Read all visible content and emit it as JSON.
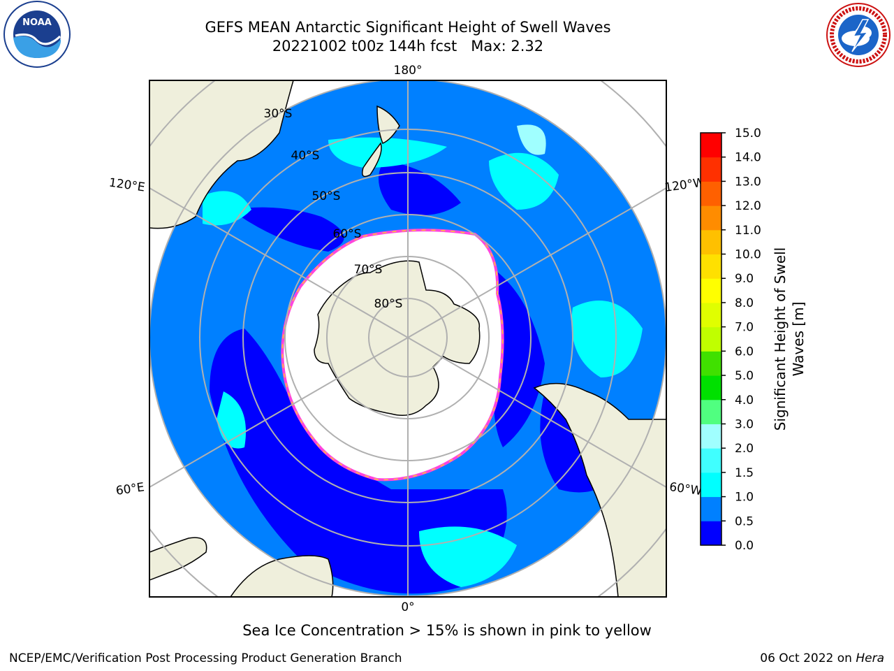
{
  "title": "GEFS MEAN Antarctic Significant Height of Swell Waves",
  "subtitle": "20221002 t00z 144h fcst   Max: 2.32",
  "caption": "Sea Ice Concentration > 15% is shown in pink to yellow",
  "footer": {
    "credit": "NCEP/EMC/Verification Post Processing Product Generation Branch",
    "date_prefix": "06 Oct 2022 on ",
    "machine": "Hera"
  },
  "logos": {
    "noaa_text": "NOAA",
    "noaa_ring": "NATIONAL OCEANIC AND ATMOSPHERIC ADMINISTRATION · U.S. DEPARTMENT OF COMMERCE",
    "nws_ring": "NATIONAL WEATHER SERVICE"
  },
  "map": {
    "projection": "South Polar Stereographic",
    "lon_labels": [
      "180°",
      "120°E",
      "120°W",
      "60°E",
      "60°W",
      "0°"
    ],
    "lat_labels": [
      "30°S",
      "40°S",
      "50°S",
      "60°S",
      "70°S",
      "80°S"
    ]
  },
  "colorbar": {
    "label": "Significant Height of Swell Waves [m]",
    "ticks": [
      "0.0",
      "0.5",
      "1.0",
      "1.5",
      "2.0",
      "3.0",
      "4.0",
      "5.0",
      "6.0",
      "7.0",
      "8.0",
      "9.0",
      "10.0",
      "11.0",
      "12.0",
      "13.0",
      "14.0",
      "15.0"
    ],
    "colors": [
      "#0000ff",
      "#0080ff",
      "#00ffff",
      "#40ffff",
      "#a0ffff",
      "#50ff80",
      "#00e000",
      "#40e000",
      "#c0ff00",
      "#e0ff00",
      "#ffff00",
      "#ffe000",
      "#ffc000",
      "#ff8c00",
      "#ff6000",
      "#ff3000",
      "#ff0000"
    ]
  },
  "colors": {
    "land": "#efefdc",
    "ice": "#ffffff",
    "ice_edge": "#ff44dd",
    "ice_edge2": "#ffcc33",
    "grid": "#b0b0b0"
  }
}
